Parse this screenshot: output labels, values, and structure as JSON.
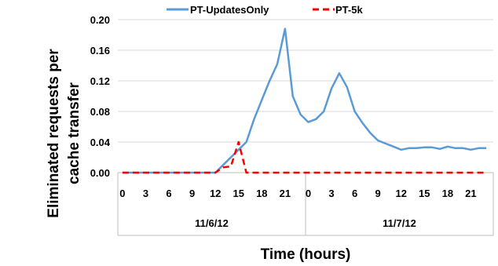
{
  "chart_data": {
    "type": "line",
    "xlabel": "Time (hours)",
    "ylabel": [
      "Eliminated requests per",
      "cache transfer"
    ],
    "ylim": [
      0,
      0.2
    ],
    "yticks": [
      "0.00",
      "0.04",
      "0.08",
      "0.12",
      "0.16",
      "0.20"
    ],
    "ytick_values": [
      0,
      0.04,
      0.08,
      0.12,
      0.16,
      0.2
    ],
    "grid": "horizontal",
    "legend_position": "top",
    "hour_ticks": [
      "0",
      "3",
      "6",
      "9",
      "12",
      "15",
      "18",
      "21",
      "0",
      "3",
      "6",
      "9",
      "12",
      "15",
      "18",
      "21"
    ],
    "date_groups": [
      "11/6/12",
      "11/7/12"
    ],
    "x_hours": [
      0,
      1,
      2,
      3,
      4,
      5,
      6,
      7,
      8,
      9,
      10,
      11,
      12,
      13,
      14,
      15,
      16,
      17,
      18,
      19,
      20,
      21,
      22,
      23,
      24,
      25,
      26,
      27,
      28,
      29,
      30,
      31,
      32,
      33,
      34,
      35,
      36,
      37,
      38,
      39,
      40,
      41,
      42,
      43,
      44,
      45,
      46,
      47
    ],
    "series": [
      {
        "name": "PT-UpdatesOnly",
        "color": "#5b9bd5",
        "dash": "solid",
        "values": [
          0,
          0,
          0,
          0,
          0,
          0,
          0,
          0,
          0,
          0,
          0,
          0,
          0,
          0.01,
          0.02,
          0.03,
          0.04,
          0.07,
          0.095,
          0.12,
          0.142,
          0.188,
          0.1,
          0.076,
          0.066,
          0.07,
          0.08,
          0.11,
          0.13,
          0.112,
          0.08,
          0.065,
          0.052,
          0.042,
          0.038,
          0.034,
          0.03,
          0.032,
          0.032,
          0.033,
          0.033,
          0.031,
          0.034,
          0.032,
          0.032,
          0.03,
          0.032,
          0.032
        ]
      },
      {
        "name": "PT-5k",
        "color": "#ff0000",
        "dash": "dashed",
        "values": [
          0,
          0,
          0,
          0,
          0,
          0,
          0,
          0,
          0,
          0,
          0,
          0,
          0,
          0.007,
          0.008,
          0.04,
          0,
          0,
          0,
          0,
          0,
          0,
          0,
          0,
          0,
          0,
          0,
          0,
          0,
          0,
          0,
          0,
          0,
          0,
          0,
          0,
          0,
          0,
          0,
          0,
          0,
          0,
          0,
          0,
          0,
          0,
          0,
          0
        ]
      }
    ]
  }
}
